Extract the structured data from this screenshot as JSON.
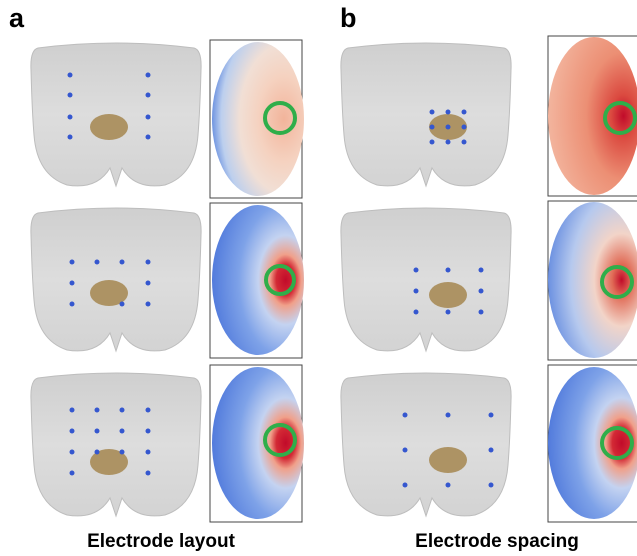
{
  "panels": [
    {
      "label": "a",
      "caption": "Electrode layout"
    },
    {
      "label": "b",
      "caption": "Electrode spacing"
    }
  ]
}
